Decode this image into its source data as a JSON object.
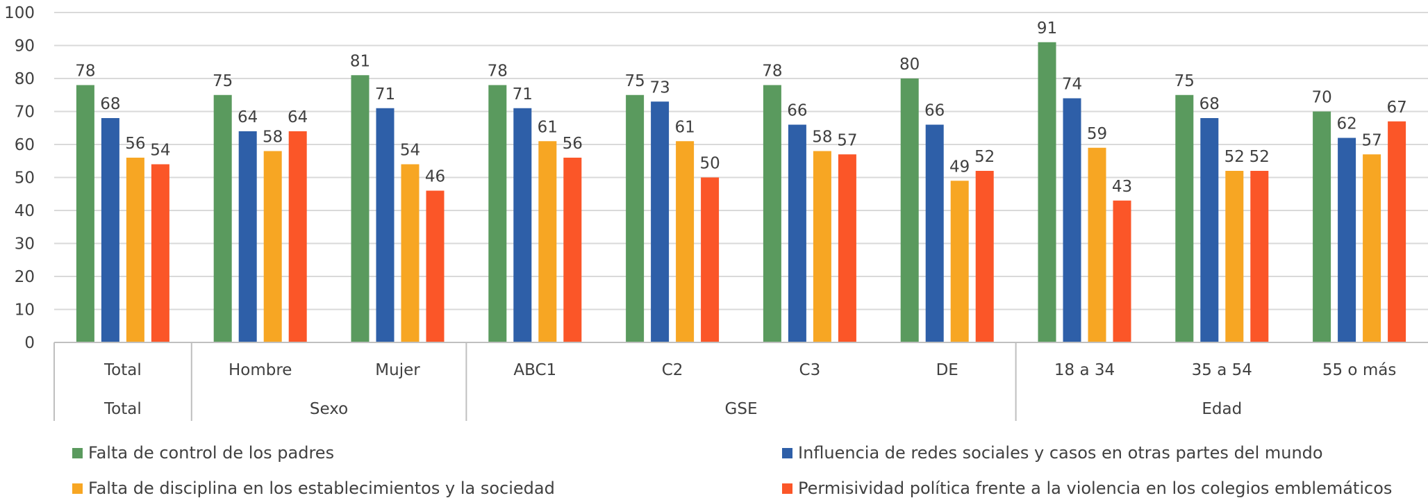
{
  "chart_data": {
    "type": "bar",
    "title": "",
    "xlabel": "",
    "ylabel": "",
    "ylim": [
      0,
      100
    ],
    "yticks": [
      0,
      10,
      20,
      30,
      40,
      50,
      60,
      70,
      80,
      90,
      100
    ],
    "grid": true,
    "legend_position": "bottom",
    "categories": [
      "Total",
      "Hombre",
      "Mujer",
      "ABC1",
      "C2",
      "C3",
      "DE",
      "18 a 34",
      "35 a 54",
      "55 o más"
    ],
    "groups": [
      {
        "label": "Total",
        "count": 1
      },
      {
        "label": "Sexo",
        "count": 2
      },
      {
        "label": "GSE",
        "count": 4
      },
      {
        "label": "Edad",
        "count": 3
      }
    ],
    "series": [
      {
        "name": "Falta de control de los padres",
        "color": "#5A9A5E",
        "values": [
          78,
          75,
          81,
          78,
          75,
          78,
          80,
          91,
          75,
          70
        ]
      },
      {
        "name": "Influencia de redes sociales y casos en otras partes del mundo",
        "color": "#2E5FA8",
        "values": [
          68,
          64,
          71,
          71,
          73,
          66,
          66,
          74,
          68,
          62
        ]
      },
      {
        "name": "Falta de disciplina en los establecimientos y la sociedad",
        "color": "#F7A623",
        "values": [
          56,
          58,
          54,
          61,
          61,
          58,
          49,
          59,
          52,
          57
        ]
      },
      {
        "name": "Permisividad política frente a la violencia en los colegios emblemáticos",
        "color": "#FB5628",
        "values": [
          54,
          64,
          46,
          56,
          50,
          57,
          52,
          43,
          52,
          67
        ]
      }
    ]
  }
}
